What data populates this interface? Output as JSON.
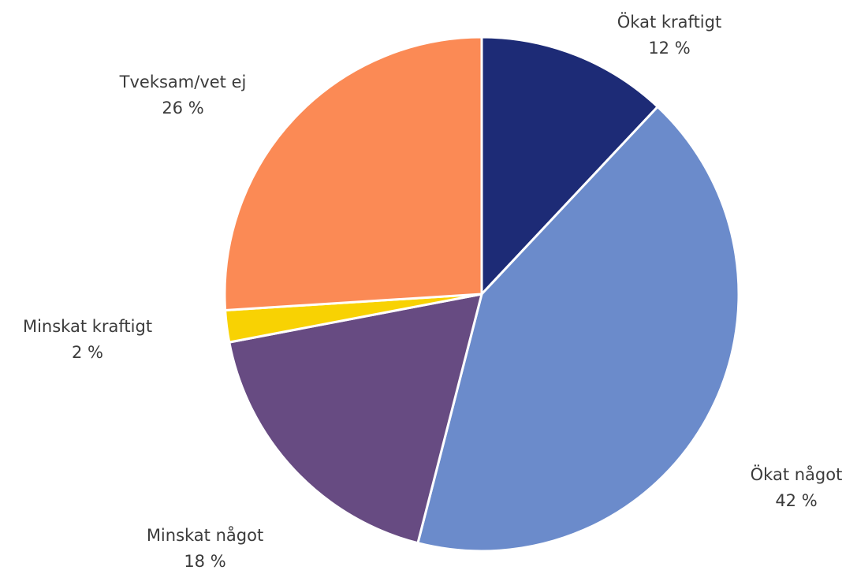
{
  "chart_data": {
    "type": "pie",
    "start_angle": "12 o'clock",
    "direction": "clockwise",
    "slice_border_color": "#ffffff",
    "label_color": "#3b3b3b",
    "slices": [
      {
        "label": "Ökat kraftigt",
        "value": 12,
        "value_label": "12 %",
        "color": "#1d2b76"
      },
      {
        "label": "Ökat något",
        "value": 42,
        "value_label": "42 %",
        "color": "#6b8bcb"
      },
      {
        "label": "Minskat något",
        "value": 18,
        "value_label": "18 %",
        "color": "#674b82"
      },
      {
        "label": "Minskat kraftigt",
        "value": 2,
        "value_label": "2 %",
        "color": "#f8d203"
      },
      {
        "label": "Tveksam/vet ej",
        "value": 26,
        "value_label": "26 %",
        "color": "#fb8a55"
      }
    ]
  }
}
